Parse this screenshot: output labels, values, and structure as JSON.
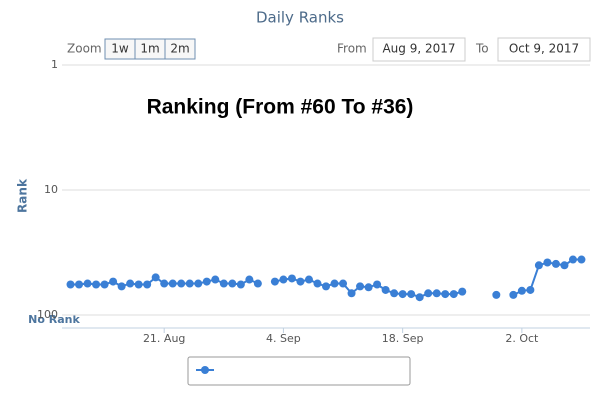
{
  "toolbar": {
    "zoom_label": "Zoom",
    "zoom_buttons": [
      "1w",
      "1m",
      "2m"
    ],
    "from_label": "From",
    "from_date": "Aug 9, 2017",
    "to_label": "To",
    "to_date": "Oct 9, 2017"
  },
  "chart_data": {
    "type": "line",
    "title": "Daily Ranks",
    "annotation": "Ranking (From #60 To #36)",
    "y_label": "Rank",
    "no_rank_label": "No Rank",
    "x": [
      "2017-08-10",
      "2017-08-11",
      "2017-08-12",
      "2017-08-13",
      "2017-08-14",
      "2017-08-15",
      "2017-08-16",
      "2017-08-17",
      "2017-08-18",
      "2017-08-19",
      "2017-08-20",
      "2017-08-21",
      "2017-08-22",
      "2017-08-23",
      "2017-08-24",
      "2017-08-25",
      "2017-08-26",
      "2017-08-27",
      "2017-08-28",
      "2017-08-29",
      "2017-08-30",
      "2017-08-31",
      "2017-09-01",
      "2017-09-02",
      "2017-09-03",
      "2017-09-04",
      "2017-09-05",
      "2017-09-06",
      "2017-09-07",
      "2017-09-08",
      "2017-09-09",
      "2017-09-10",
      "2017-09-11",
      "2017-09-12",
      "2017-09-13",
      "2017-09-14",
      "2017-09-15",
      "2017-09-16",
      "2017-09-17",
      "2017-09-18",
      "2017-09-19",
      "2017-09-20",
      "2017-09-21",
      "2017-09-22",
      "2017-09-23",
      "2017-09-24",
      "2017-09-25",
      "2017-09-26",
      "2017-09-27",
      "2017-09-28",
      "2017-09-29",
      "2017-09-30",
      "2017-10-01",
      "2017-10-02",
      "2017-10-03",
      "2017-10-04",
      "2017-10-05",
      "2017-10-06",
      "2017-10-07",
      "2017-10-08",
      "2017-10-09"
    ],
    "series": [
      {
        "color": "#3a7fd5",
        "values": [
          57,
          57,
          56,
          57,
          57,
          54,
          59,
          56,
          57,
          57,
          50,
          56,
          56,
          56,
          56,
          56,
          54,
          52,
          56,
          56,
          57,
          52,
          56,
          null,
          54,
          52,
          51,
          54,
          52,
          56,
          59,
          56,
          56,
          67,
          59,
          60,
          57,
          63,
          67,
          68,
          68,
          72,
          67,
          67,
          68,
          68,
          65,
          null,
          null,
          null,
          69,
          null,
          69,
          64,
          63,
          40,
          38,
          39,
          40,
          36,
          36
        ]
      }
    ],
    "xlim": [
      "2017-08-09",
      "2017-10-10"
    ],
    "xticks": [
      {
        "value": "2017-08-21",
        "label": "21. Aug"
      },
      {
        "value": "2017-09-04",
        "label": "4. Sep"
      },
      {
        "value": "2017-09-18",
        "label": "18. Sep"
      },
      {
        "value": "2017-10-02",
        "label": "2. Oct"
      }
    ],
    "ylim": [
      1,
      127
    ],
    "yticks": [
      1,
      10,
      100
    ],
    "log_y": true,
    "y_reversed": true,
    "grid": true
  }
}
